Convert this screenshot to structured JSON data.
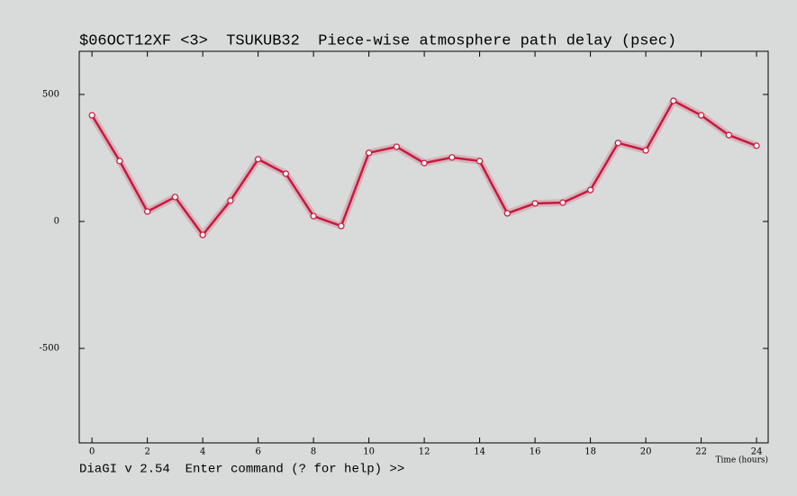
{
  "chart_data": {
    "type": "line",
    "title": "$06OCT12XF <3>  TSUKUB32  Piece-wise atmosphere path delay (psec)",
    "x_label": "Time (hours)",
    "x": [
      0,
      1,
      2,
      3,
      4,
      5,
      6,
      7,
      8,
      9,
      10,
      11,
      12,
      13,
      14,
      15,
      16,
      17,
      18,
      19,
      20,
      21,
      22,
      23,
      24
    ],
    "series": [
      {
        "color": "#c8193c",
        "values": [
          418,
          238,
          39,
          96,
          -53,
          82,
          245,
          188,
          21,
          -18,
          270,
          294,
          230,
          252,
          238,
          32,
          71,
          74,
          124,
          309,
          280,
          475,
          418,
          340,
          298
        ]
      }
    ],
    "xlim": [
      -0.46,
      24.42
    ],
    "ylim": [
      -872,
      670
    ],
    "xticks": [
      0,
      2,
      4,
      6,
      8,
      10,
      12,
      14,
      16,
      18,
      20,
      22,
      24
    ],
    "yticks": [
      -500,
      0,
      500
    ]
  },
  "command_line": "DiaGI v 2.54  Enter command (? for help) >>"
}
